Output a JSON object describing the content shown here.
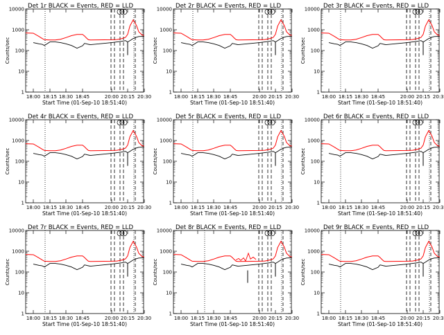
{
  "chart_data": [
    {
      "type": "line",
      "title": "Det 1r BLACK = Events, RED = LLD",
      "ylabel": "Counts/sec",
      "xlabel": "Start Time (01-Sep-10 18:51:40)",
      "ylim": [
        1,
        10000
      ],
      "yscale": "log",
      "xlim": [
        "17:52",
        "20:35"
      ],
      "x_ticks": [
        "18:00",
        "18:15",
        "18:30",
        "18:45",
        "20:00",
        "20:15",
        "20:30"
      ],
      "y_ticks": [
        "1",
        "10",
        "100",
        "1000",
        "10000"
      ],
      "profile": "a",
      "series": [
        {
          "name": "Events",
          "color": "#000000"
        },
        {
          "name": "LLD",
          "color": "#ff0000"
        }
      ]
    },
    {
      "type": "line",
      "title": "Det 2r BLACK = Events, RED = LLD",
      "ylabel": "Counts/sec",
      "xlabel": "Start Time (01-Sep-10 18:51:40)",
      "ylim": [
        1,
        10000
      ],
      "yscale": "log",
      "xlim": [
        "17:52",
        "20:35"
      ],
      "x_ticks": [
        "18:00",
        "18:15",
        "18:30",
        "18:45",
        "20:00",
        "20:15",
        "20:30"
      ],
      "y_ticks": [
        "1",
        "10",
        "100",
        "1000",
        "10000"
      ],
      "profile": "a",
      "series": [
        {
          "name": "Events",
          "color": "#000000"
        },
        {
          "name": "LLD",
          "color": "#ff0000"
        }
      ]
    },
    {
      "type": "line",
      "title": "Det 3r BLACK = Events, RED = LLD",
      "ylabel": "Counts/sec",
      "xlabel": "Start Time (01-Sep-10 18:51:40)",
      "ylim": [
        1,
        10000
      ],
      "yscale": "log",
      "xlim": [
        "17:52",
        "20:35"
      ],
      "x_ticks": [
        "18:00",
        "18:15",
        "18:30",
        "18:45",
        "20:00",
        "20:15",
        "20:30"
      ],
      "y_ticks": [
        "1",
        "10",
        "100",
        "1000",
        "10000"
      ],
      "profile": "a",
      "series": [
        {
          "name": "Events",
          "color": "#000000"
        },
        {
          "name": "LLD",
          "color": "#ff0000"
        }
      ]
    },
    {
      "type": "line",
      "title": "Det 4r BLACK = Events, RED = LLD",
      "ylabel": "Counts/sec",
      "xlabel": "Start Time (01-Sep-10 18:51:40)",
      "ylim": [
        1,
        10000
      ],
      "yscale": "log",
      "xlim": [
        "17:52",
        "20:35"
      ],
      "x_ticks": [
        "18:00",
        "18:15",
        "18:30",
        "18:45",
        "20:00",
        "20:15",
        "20:30"
      ],
      "y_ticks": [
        "1",
        "10",
        "100",
        "1000",
        "10000"
      ],
      "profile": "a",
      "series": [
        {
          "name": "Events",
          "color": "#000000"
        },
        {
          "name": "LLD",
          "color": "#ff0000"
        }
      ]
    },
    {
      "type": "line",
      "title": "Det 5r BLACK = Events, RED = LLD",
      "ylabel": "Counts/sec",
      "xlabel": "Start Time (01-Sep-10 18:51:40)",
      "ylim": [
        1,
        10000
      ],
      "yscale": "log",
      "xlim": [
        "17:52",
        "20:35"
      ],
      "x_ticks": [
        "18:00",
        "18:15",
        "18:30",
        "18:45",
        "20:00",
        "20:15",
        "20:30"
      ],
      "y_ticks": [
        "1",
        "10",
        "100",
        "1000",
        "10000"
      ],
      "profile": "a",
      "series": [
        {
          "name": "Events",
          "color": "#000000"
        },
        {
          "name": "LLD",
          "color": "#ff0000"
        }
      ]
    },
    {
      "type": "line",
      "title": "Det 6r BLACK = Events, RED = LLD",
      "ylabel": "Counts/sec",
      "xlabel": "Start Time (01-Sep-10 18:51:40)",
      "ylim": [
        1,
        10000
      ],
      "yscale": "log",
      "xlim": [
        "17:52",
        "20:35"
      ],
      "x_ticks": [
        "18:00",
        "18:15",
        "18:30",
        "18:45",
        "20:00",
        "20:15",
        "20:30"
      ],
      "y_ticks": [
        "1",
        "10",
        "100",
        "1000",
        "10000"
      ],
      "profile": "a",
      "series": [
        {
          "name": "Events",
          "color": "#000000"
        },
        {
          "name": "LLD",
          "color": "#ff0000"
        }
      ]
    },
    {
      "type": "line",
      "title": "Det 7r BLACK = Events, RED = LLD",
      "ylabel": "Counts/sec",
      "xlabel": "Start Time (01-Sep-10 18:51:40)",
      "ylim": [
        1,
        10000
      ],
      "yscale": "log",
      "xlim": [
        "17:52",
        "20:35"
      ],
      "x_ticks": [
        "18:00",
        "18:15",
        "18:30",
        "18:45",
        "20:00",
        "20:15",
        "20:30"
      ],
      "y_ticks": [
        "1",
        "10",
        "100",
        "1000",
        "10000"
      ],
      "profile": "a",
      "series": [
        {
          "name": "Events",
          "color": "#000000"
        },
        {
          "name": "LLD",
          "color": "#ff0000"
        }
      ]
    },
    {
      "type": "line",
      "title": "Det 8r BLACK = Events, RED = LLD",
      "ylabel": "Counts/sec",
      "xlabel": "Start Time (01-Sep-10 18:51:40)",
      "ylim": [
        1,
        10000
      ],
      "yscale": "log",
      "xlim": [
        "17:52",
        "20:35"
      ],
      "x_ticks": [
        "18:00",
        "18:15",
        "18:30",
        "18:45",
        "20:00",
        "20:15",
        "20:30"
      ],
      "y_ticks": [
        "1",
        "10",
        "100",
        "1000",
        "10000"
      ],
      "profile": "b",
      "series": [
        {
          "name": "Events",
          "color": "#000000"
        },
        {
          "name": "LLD",
          "color": "#ff0000"
        }
      ]
    },
    {
      "type": "line",
      "title": "Det 9r BLACK = Events, RED = LLD",
      "ylabel": "Counts/sec",
      "xlabel": "Start Time (01-Sep-10 18:51:40)",
      "ylim": [
        1,
        10000
      ],
      "yscale": "log",
      "xlim": [
        "17:52",
        "20:35"
      ],
      "x_ticks": [
        "18:00",
        "18:15",
        "18:30",
        "18:45",
        "20:00",
        "20:15",
        "20:30"
      ],
      "y_ticks": [
        "1",
        "10",
        "100",
        "1000",
        "10000"
      ],
      "profile": "a",
      "series": [
        {
          "name": "Events",
          "color": "#000000"
        },
        {
          "name": "LLD",
          "color": "#ff0000"
        }
      ]
    }
  ],
  "shared_series": {
    "x": [
      "17:52",
      "18:00",
      "18:05",
      "18:08",
      "18:10",
      "18:15",
      "18:20",
      "18:25",
      "18:30",
      "18:35",
      "18:40",
      "18:45",
      "18:50",
      "18:55",
      "19:00",
      "19:05",
      "20:00",
      "20:05",
      "20:10",
      "20:13",
      "20:15",
      "20:17",
      "20:20",
      "20:23",
      "20:25",
      "20:28",
      "20:31"
    ],
    "lld": [
      700,
      680,
      480,
      380,
      330,
      320,
      320,
      350,
      420,
      520,
      600,
      600,
      500,
      400,
      330,
      320,
      330,
      340,
      380,
      430,
      600,
      1500,
      3000,
      1600,
      800,
      560,
      540
    ],
    "events": [
      null,
      240,
      210,
      200,
      175,
      260,
      260,
      240,
      210,
      175,
      130,
      170,
      220,
      210,
      200,
      190,
      240,
      260,
      280,
      300,
      260,
      300,
      380,
      440,
      470,
      480,
      480
    ]
  }
}
